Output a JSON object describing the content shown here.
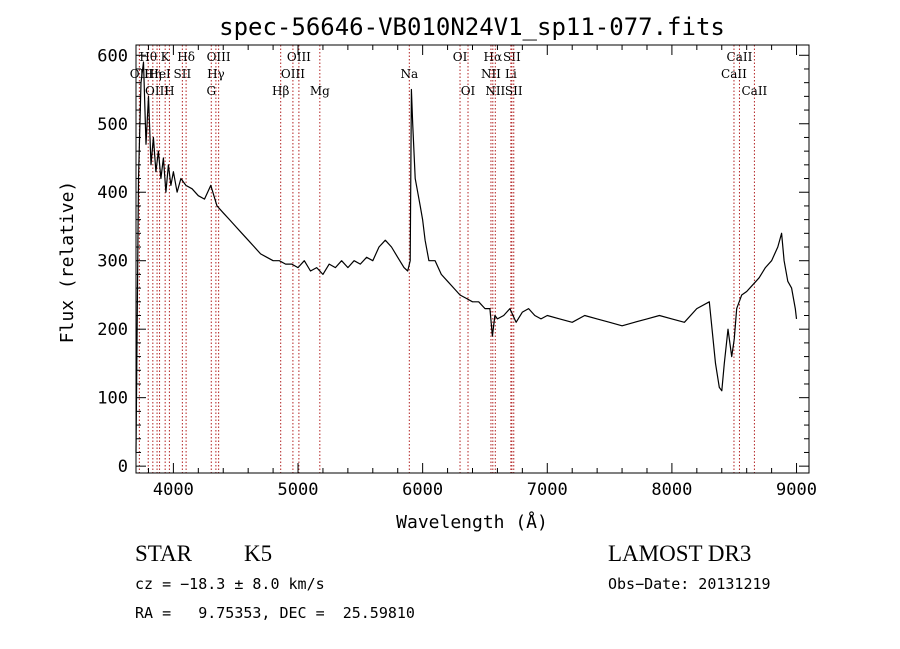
{
  "chart_data": {
    "type": "line",
    "title": "spec-56646-VB010N24V1_sp11-077.fits",
    "xlabel": "Wavelength (Å)",
    "ylabel": "Flux (relative)",
    "xlim": [
      3700,
      9100
    ],
    "ylim": [
      -10,
      615
    ],
    "xticks": [
      4000,
      5000,
      6000,
      7000,
      8000,
      9000
    ],
    "yticks": [
      0,
      100,
      200,
      300,
      400,
      500,
      600
    ],
    "grid": false,
    "series": [
      {
        "x": [
          3700,
          3720,
          3740,
          3760,
          3780,
          3800,
          3820,
          3840,
          3860,
          3880,
          3900,
          3920,
          3940,
          3960,
          3980,
          4000,
          4030,
          4060,
          4100,
          4150,
          4200,
          4250,
          4300,
          4350,
          4400,
          4450,
          4500,
          4550,
          4600,
          4650,
          4700,
          4750,
          4800,
          4850,
          4900,
          4950,
          5000,
          5050,
          5100,
          5150,
          5200,
          5250,
          5300,
          5350,
          5400,
          5450,
          5500,
          5550,
          5600,
          5650,
          5700,
          5750,
          5800,
          5850,
          5880,
          5900,
          5910,
          5920,
          5940,
          5960,
          5980,
          6000,
          6020,
          6050,
          6100,
          6150,
          6200,
          6250,
          6300,
          6350,
          6400,
          6450,
          6500,
          6540,
          6560,
          6580,
          6600,
          6650,
          6700,
          6750,
          6800,
          6850,
          6900,
          6950,
          7000,
          7100,
          7200,
          7300,
          7400,
          7500,
          7600,
          7700,
          7800,
          7900,
          8000,
          8100,
          8200,
          8300,
          8350,
          8380,
          8400,
          8420,
          8450,
          8480,
          8500,
          8520,
          8540,
          8560,
          8600,
          8650,
          8700,
          8750,
          8800,
          8850,
          8880,
          8900,
          8930,
          8960,
          8990,
          9000
        ],
        "y": [
          20,
          420,
          560,
          590,
          470,
          540,
          440,
          480,
          430,
          460,
          420,
          450,
          400,
          440,
          410,
          430,
          400,
          420,
          410,
          405,
          395,
          390,
          410,
          380,
          370,
          360,
          350,
          340,
          330,
          320,
          310,
          305,
          300,
          300,
          295,
          295,
          290,
          300,
          285,
          290,
          280,
          295,
          290,
          300,
          290,
          300,
          295,
          305,
          300,
          320,
          330,
          320,
          305,
          290,
          285,
          300,
          550,
          500,
          420,
          400,
          380,
          360,
          330,
          300,
          300,
          280,
          270,
          260,
          250,
          245,
          240,
          240,
          230,
          230,
          190,
          220,
          215,
          220,
          230,
          210,
          225,
          230,
          220,
          215,
          220,
          215,
          210,
          220,
          215,
          210,
          205,
          210,
          215,
          220,
          215,
          210,
          230,
          240,
          150,
          115,
          110,
          150,
          200,
          160,
          185,
          230,
          240,
          250,
          255,
          265,
          275,
          290,
          300,
          320,
          340,
          300,
          270,
          260,
          230,
          215
        ],
        "color": "#000000"
      }
    ],
    "line_markers": [
      {
        "label": "Hθ",
        "x": 3798,
        "row": 1
      },
      {
        "label": "OII",
        "x": 3727,
        "row": 2
      },
      {
        "label": "Hη",
        "x": 3835,
        "row": 2
      },
      {
        "label": "OIII",
        "x": 3869,
        "row": 3
      },
      {
        "label": "K",
        "x": 3934,
        "row": 1
      },
      {
        "label": "HeI",
        "x": 3889,
        "row": 2
      },
      {
        "label": "H",
        "x": 3968,
        "row": 3
      },
      {
        "label": "SII",
        "x": 4072,
        "row": 2
      },
      {
        "label": "Hδ",
        "x": 4102,
        "row": 1
      },
      {
        "label": "OIII",
        "x": 4363,
        "row": 1
      },
      {
        "label": "Hγ",
        "x": 4341,
        "row": 2
      },
      {
        "label": "G",
        "x": 4304,
        "row": 3
      },
      {
        "label": "Hβ",
        "x": 4861,
        "row": 3
      },
      {
        "label": "OIII",
        "x": 5007,
        "row": 1
      },
      {
        "label": "OIII",
        "x": 4959,
        "row": 2
      },
      {
        "label": "Mg",
        "x": 5175,
        "row": 3
      },
      {
        "label": "Na",
        "x": 5893,
        "row": 2
      },
      {
        "label": "OI",
        "x": 6300,
        "row": 1
      },
      {
        "label": "OI",
        "x": 6364,
        "row": 3
      },
      {
        "label": "Hα",
        "x": 6563,
        "row": 1
      },
      {
        "label": "NII",
        "x": 6548,
        "row": 2
      },
      {
        "label": "NII",
        "x": 6583,
        "row": 3
      },
      {
        "label": "SII",
        "x": 6716,
        "row": 1
      },
      {
        "label": "Li",
        "x": 6708,
        "row": 2
      },
      {
        "label": "SII",
        "x": 6731,
        "row": 3
      },
      {
        "label": "CaII",
        "x": 8542,
        "row": 1
      },
      {
        "label": "CaII",
        "x": 8498,
        "row": 2
      },
      {
        "label": "CaII",
        "x": 8662,
        "row": 3
      }
    ]
  },
  "info": {
    "object_type": "STAR",
    "subclass": "K5",
    "survey": "LAMOST DR3",
    "cz": "cz = −18.3 ± 8.0 km/s",
    "obs_date": "Obs−Date: 20131219",
    "coords": "RA =   9.75353, DEC =  25.59810"
  },
  "colors": {
    "marker": "#b22222",
    "spectrum": "#000000"
  }
}
